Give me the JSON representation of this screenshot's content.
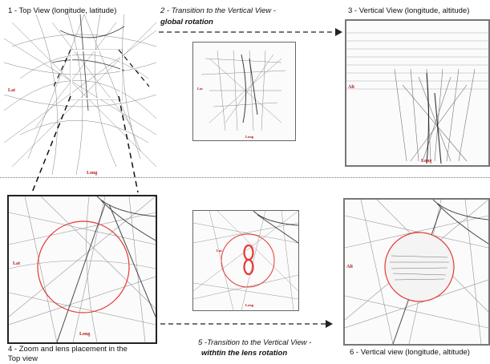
{
  "captions": {
    "p1": "1 - Top View (longitude, latitude)",
    "p2_line1": "2 - Transition to the Vertical View -",
    "p2_line2": "global rotation",
    "p3": "3 - Vertical View (longitude, altitude)",
    "p4_line1": "4 - Zoom and lens placement in the",
    "p4_line2": "Top view",
    "p5_line1": "5 -Transition to the Vertical View -",
    "p5_line2": "withtin the lens rotation",
    "p6": "6 - Vertical view (longitude, altitude)"
  },
  "axes": {
    "lat": "Lat",
    "long": "Long",
    "alt": "Alt"
  },
  "colors": {
    "lens": "#e53935",
    "axis_label": "#b71c1c",
    "trajectory": "#1a1a1a"
  }
}
